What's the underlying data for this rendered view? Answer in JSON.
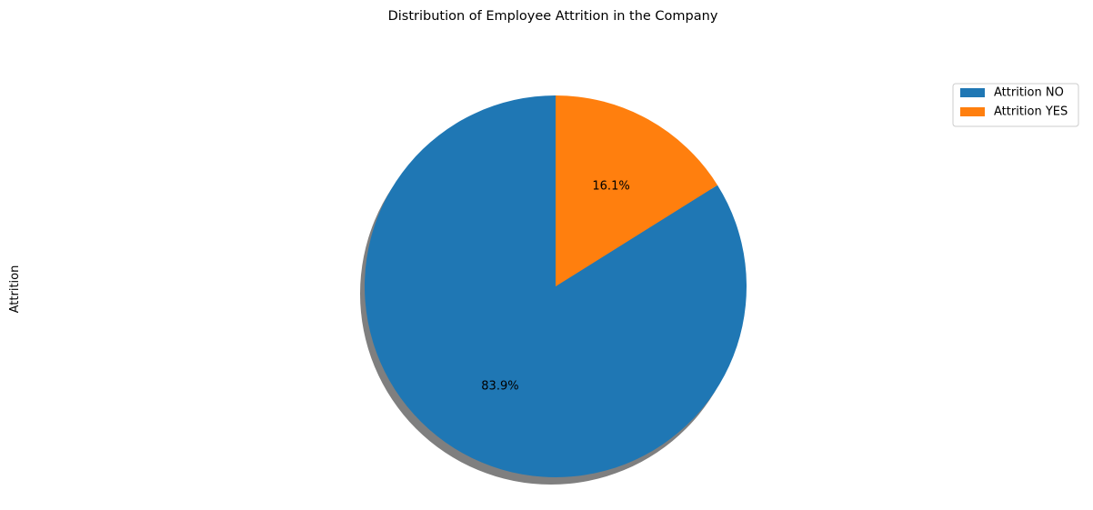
{
  "chart_data": {
    "type": "pie",
    "title": "Distribution of Employee Attrition in the Company",
    "ylabel": "Attrition",
    "slices": [
      {
        "label": "Attrition NO",
        "value": 83.9,
        "pct_label": "83.9%",
        "color": "#1f77b4"
      },
      {
        "label": "Attrition YES",
        "value": 16.1,
        "pct_label": "16.1%",
        "color": "#ff7f0e"
      }
    ],
    "start_angle_deg": 90,
    "direction": "counterclockwise",
    "shadow": true,
    "legend_position": "top-right"
  }
}
